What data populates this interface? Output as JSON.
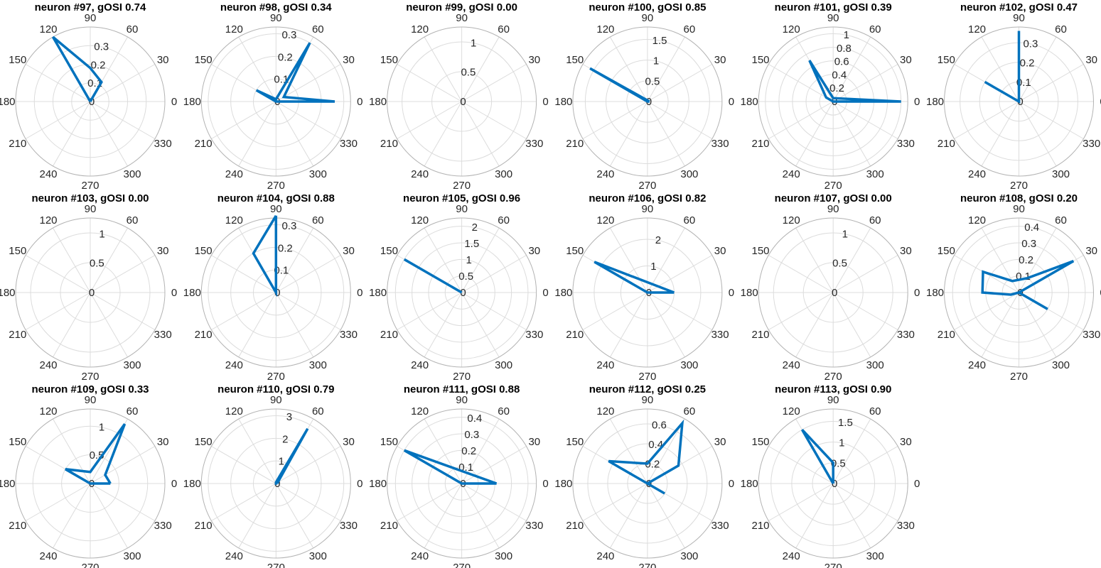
{
  "figure": {
    "theta_labels": [
      "0",
      "30",
      "60",
      "90",
      "120",
      "150",
      "180",
      "210",
      "240",
      "270",
      "300",
      "330"
    ],
    "series_color": "#0072BD",
    "grid_color": "#dcdcdc",
    "axis_color": "#b3b3b3"
  },
  "chart_data": [
    {
      "type": "polar",
      "title": "neuron #97, gOSI 0.74",
      "rmax": 0.4,
      "rticks": [
        0,
        0.1,
        0.2,
        0.3
      ],
      "rtick_labels": [
        "0",
        "0.1",
        "0.2",
        "0.3"
      ],
      "points": [
        [
          0,
          0
        ],
        [
          60,
          0.12
        ],
        [
          90,
          0.18
        ],
        [
          120,
          0.4
        ],
        [
          180,
          0
        ],
        [
          0,
          0
        ]
      ]
    },
    {
      "type": "polar",
      "title": "neuron #98, gOSI 0.34",
      "rmax": 0.33,
      "rticks": [
        0,
        0.1,
        0.2,
        0.3
      ],
      "rtick_labels": [
        "0",
        "0.1",
        "0.2",
        "0.3"
      ],
      "points": [
        [
          0,
          0.26
        ],
        [
          30,
          0.04
        ],
        [
          60,
          0.3
        ],
        [
          90,
          0.01
        ],
        [
          150,
          0.1
        ],
        [
          180,
          0
        ],
        [
          0,
          0.26
        ]
      ]
    },
    {
      "type": "polar",
      "title": "neuron #99, gOSI 0.00",
      "rmax": 1.25,
      "rticks": [
        0,
        0.5,
        1
      ],
      "rtick_labels": [
        "0",
        "0.5",
        "1"
      ],
      "points": [
        [
          0,
          0
        ]
      ]
    },
    {
      "type": "polar",
      "title": "neuron #100, gOSI 0.85",
      "rmax": 1.8,
      "rticks": [
        0,
        0.5,
        1,
        1.5
      ],
      "rtick_labels": [
        "0",
        "0.5",
        "1",
        "1.5"
      ],
      "points": [
        [
          0,
          0.05
        ],
        [
          150,
          1.6
        ],
        [
          180,
          0
        ],
        [
          0,
          0.05
        ]
      ]
    },
    {
      "type": "polar",
      "title": "neuron #101, gOSI 0.39",
      "rmax": 1.1,
      "rticks": [
        0,
        0.2,
        0.4,
        0.6,
        0.8,
        1
      ],
      "rtick_labels": [
        "0",
        "0.2",
        "0.4",
        "0.6",
        "0.8",
        "1"
      ],
      "points": [
        [
          0,
          1.0
        ],
        [
          90,
          0.05
        ],
        [
          120,
          0.7
        ],
        [
          150,
          0.12
        ],
        [
          180,
          0
        ],
        [
          0,
          1.0
        ]
      ]
    },
    {
      "type": "polar",
      "title": "neuron #102, gOSI 0.47",
      "rmax": 0.38,
      "rticks": [
        0,
        0.1,
        0.2,
        0.3
      ],
      "rtick_labels": [
        "0",
        "0.1",
        "0.2",
        "0.3"
      ],
      "points": [
        [
          0,
          0
        ],
        [
          90,
          0.36
        ],
        [
          180,
          0
        ],
        [
          150,
          0.2
        ],
        [
          0,
          0
        ]
      ]
    },
    {
      "type": "polar",
      "title": "neuron #103, gOSI 0.00",
      "rmax": 1.25,
      "rticks": [
        0,
        0.5,
        1
      ],
      "rtick_labels": [
        "0",
        "0.5",
        "1"
      ],
      "points": [
        [
          0,
          0
        ]
      ]
    },
    {
      "type": "polar",
      "title": "neuron #104, gOSI 0.88",
      "rmax": 0.33,
      "rticks": [
        0,
        0.1,
        0.2,
        0.3
      ],
      "rtick_labels": [
        "0",
        "0.1",
        "0.2",
        "0.3"
      ],
      "points": [
        [
          90,
          0.34
        ],
        [
          120,
          0.2
        ],
        [
          180,
          0
        ],
        [
          90,
          0.34
        ]
      ]
    },
    {
      "type": "polar",
      "title": "neuron #105, gOSI 0.96",
      "rmax": 2.25,
      "rticks": [
        0,
        0.5,
        1,
        1.5,
        2
      ],
      "rtick_labels": [
        "0",
        "0.5",
        "1",
        "1.5",
        "2"
      ],
      "points": [
        [
          0,
          0
        ],
        [
          150,
          2.0
        ],
        [
          180,
          0
        ],
        [
          0,
          0
        ]
      ]
    },
    {
      "type": "polar",
      "title": "neuron #106, gOSI 0.82",
      "rmax": 2.8,
      "rticks": [
        0,
        1,
        2
      ],
      "rtick_labels": [
        "0",
        "1",
        "2"
      ],
      "points": [
        [
          0,
          1.0
        ],
        [
          150,
          2.3
        ],
        [
          180,
          0
        ],
        [
          0,
          1.0
        ]
      ]
    },
    {
      "type": "polar",
      "title": "neuron #107, gOSI 0.00",
      "rmax": 1.25,
      "rticks": [
        0,
        0.5,
        1
      ],
      "rtick_labels": [
        "0",
        "0.5",
        "1"
      ],
      "points": [
        [
          0,
          0
        ]
      ]
    },
    {
      "type": "polar",
      "title": "neuron #108, gOSI 0.20",
      "rmax": 0.45,
      "rticks": [
        0,
        0.1,
        0.2,
        0.3,
        0.4
      ],
      "rtick_labels": [
        "0",
        "0.1",
        "0.2",
        "0.3",
        "0.4"
      ],
      "points": [
        [
          -30,
          0.2
        ],
        [
          0,
          0.0
        ],
        [
          30,
          0.38
        ],
        [
          60,
          0.1
        ],
        [
          120,
          0.08
        ],
        [
          150,
          0.25
        ],
        [
          180,
          0.22
        ],
        [
          195,
          0.05
        ],
        [
          180,
          0
        ],
        [
          0,
          0
        ]
      ]
    },
    {
      "type": "polar",
      "title": "neuron #109, gOSI 0.33",
      "rmax": 1.3,
      "rticks": [
        0,
        0.5,
        1
      ],
      "rtick_labels": [
        "0",
        "0.5",
        "1"
      ],
      "points": [
        [
          0,
          0.35
        ],
        [
          30,
          0.3
        ],
        [
          60,
          1.2
        ],
        [
          90,
          0.2
        ],
        [
          150,
          0.5
        ],
        [
          180,
          0
        ],
        [
          0,
          0.35
        ]
      ]
    },
    {
      "type": "polar",
      "title": "neuron #110, gOSI 0.79",
      "rmax": 3.3,
      "rticks": [
        0,
        1,
        2,
        3
      ],
      "rtick_labels": [
        "0",
        "1",
        "2",
        "3"
      ],
      "points": [
        [
          0,
          0.05
        ],
        [
          60,
          2.8
        ],
        [
          90,
          0.05
        ],
        [
          180,
          0
        ],
        [
          0,
          0.05
        ]
      ]
    },
    {
      "type": "polar",
      "title": "neuron #111, gOSI 0.88",
      "rmax": 0.45,
      "rticks": [
        0,
        0.1,
        0.2,
        0.3,
        0.4
      ],
      "rtick_labels": [
        "0",
        "0.1",
        "0.2",
        "0.3",
        "0.4"
      ],
      "points": [
        [
          0,
          0.21
        ],
        [
          150,
          0.4
        ],
        [
          180,
          0
        ],
        [
          0,
          0.21
        ]
      ]
    },
    {
      "type": "polar",
      "title": "neuron #112, gOSI 0.25",
      "rmax": 0.75,
      "rticks": [
        0,
        0.2,
        0.4,
        0.6
      ],
      "rtick_labels": [
        "0",
        "0.2",
        "0.4",
        "0.6"
      ],
      "points": [
        [
          -30,
          0.2
        ],
        [
          0,
          0.0
        ],
        [
          30,
          0.36
        ],
        [
          60,
          0.7
        ],
        [
          90,
          0.2
        ],
        [
          150,
          0.45
        ],
        [
          180,
          0
        ],
        [
          0,
          0
        ]
      ]
    },
    {
      "type": "polar",
      "title": "neuron #113, gOSI 0.90",
      "rmax": 1.8,
      "rticks": [
        0,
        0.5,
        1,
        1.5
      ],
      "rtick_labels": [
        "0",
        "0.5",
        "1",
        "1.5"
      ],
      "points": [
        [
          0,
          0
        ],
        [
          90,
          0.5
        ],
        [
          120,
          1.5
        ],
        [
          180,
          0
        ],
        [
          0,
          0
        ]
      ]
    }
  ]
}
